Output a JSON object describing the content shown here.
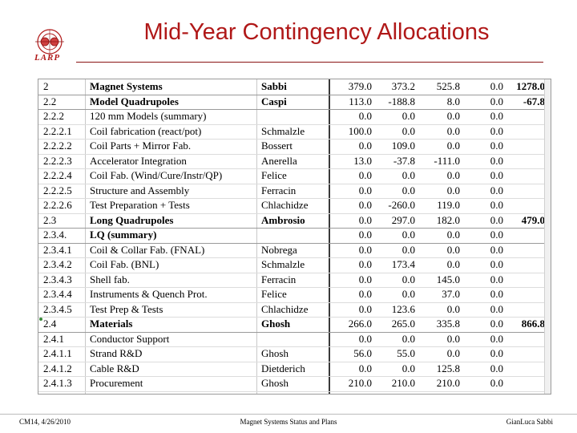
{
  "header": {
    "title": "Mid-Year Contingency Allocations",
    "logo_text": "LARP"
  },
  "table": {
    "rows": [
      {
        "id": "2",
        "name": "Magnet Systems",
        "person": "Sabbi",
        "v1": "379.0",
        "v2": "373.2",
        "v3": "525.8",
        "v4": "0.0",
        "total": "1278.0",
        "bold": true
      },
      {
        "id": "2.2",
        "name": "Model Quadrupoles",
        "person": "Caspi",
        "v1": "113.0",
        "v2": "-188.8",
        "v3": "8.0",
        "v4": "0.0",
        "total": "-67.8",
        "bold": true
      },
      {
        "id": "2.2.2",
        "name": "120 mm Models  (summary)",
        "person": "",
        "v1": "0.0",
        "v2": "0.0",
        "v3": "0.0",
        "v4": "0.0",
        "total": "",
        "bold": false
      },
      {
        "id": "2.2.2.1",
        "name": "Coil fabrication (react/pot)",
        "person": "Schmalzle",
        "v1": "100.0",
        "v2": "0.0",
        "v3": "0.0",
        "v4": "0.0",
        "total": "",
        "bold": false
      },
      {
        "id": "2.2.2.2",
        "name": "Coil Parts + Mirror Fab.",
        "person": "Bossert",
        "v1": "0.0",
        "v2": "109.0",
        "v3": "0.0",
        "v4": "0.0",
        "total": "",
        "bold": false
      },
      {
        "id": "2.2.2.3",
        "name": "Accelerator Integration",
        "person": "Anerella",
        "v1": "13.0",
        "v2": "-37.8",
        "v3": "-111.0",
        "v4": "0.0",
        "total": "",
        "bold": false
      },
      {
        "id": "2.2.2.4",
        "name": "Coil Fab. (Wind/Cure/Instr/QP)",
        "person": "Felice",
        "v1": "0.0",
        "v2": "0.0",
        "v3": "0.0",
        "v4": "0.0",
        "total": "",
        "bold": false
      },
      {
        "id": "2.2.2.5",
        "name": "Structure and Assembly",
        "person": "Ferracin",
        "v1": "0.0",
        "v2": "0.0",
        "v3": "0.0",
        "v4": "0.0",
        "total": "",
        "bold": false
      },
      {
        "id": "2.2.2.6",
        "name": "Test Preparation + Tests",
        "person": "Chlachidze",
        "v1": "0.0",
        "v2": "-260.0",
        "v3": "119.0",
        "v4": "0.0",
        "total": "",
        "bold": false
      },
      {
        "id": "2.3",
        "name": "Long Quadrupoles",
        "person": "Ambrosio",
        "v1": "0.0",
        "v2": "297.0",
        "v3": "182.0",
        "v4": "0.0",
        "total": "479.0",
        "bold": true
      },
      {
        "id": "2.3.4.",
        "name": "LQ (summary)",
        "person": "",
        "v1": "0.0",
        "v2": "0.0",
        "v3": "0.0",
        "v4": "0.0",
        "total": "",
        "bold": true
      },
      {
        "id": "2.3.4.1",
        "name": "Coil & Collar Fab. (FNAL)",
        "person": "Nobrega",
        "v1": "0.0",
        "v2": "0.0",
        "v3": "0.0",
        "v4": "0.0",
        "total": "",
        "bold": false
      },
      {
        "id": "2.3.4.2",
        "name": "Coil Fab. (BNL)",
        "person": "Schmalzle",
        "v1": "0.0",
        "v2": "173.4",
        "v3": "0.0",
        "v4": "0.0",
        "total": "",
        "bold": false
      },
      {
        "id": "2.3.4.3",
        "name": "Shell fab.",
        "person": "Ferracin",
        "v1": "0.0",
        "v2": "0.0",
        "v3": "145.0",
        "v4": "0.0",
        "total": "",
        "bold": false
      },
      {
        "id": "2.3.4.4",
        "name": "Instruments & Quench Prot.",
        "person": "Felice",
        "v1": "0.0",
        "v2": "0.0",
        "v3": "37.0",
        "v4": "0.0",
        "total": "",
        "bold": false
      },
      {
        "id": "2.3.4.5",
        "name": "Test Prep & Tests",
        "person": "Chlachidze",
        "v1": "0.0",
        "v2": "123.6",
        "v3": "0.0",
        "v4": "0.0",
        "total": "",
        "bold": false
      },
      {
        "id": "2.4",
        "name": "Materials",
        "person": "Ghosh",
        "v1": "266.0",
        "v2": "265.0",
        "v3": "335.8",
        "v4": "0.0",
        "total": "866.8",
        "bold": true
      },
      {
        "id": "2.4.1",
        "name": "Conductor Support",
        "person": "",
        "v1": "0.0",
        "v2": "0.0",
        "v3": "0.0",
        "v4": "0.0",
        "total": "",
        "bold": false
      },
      {
        "id": "2.4.1.1",
        "name": "Strand R&D",
        "person": "Ghosh",
        "v1": "56.0",
        "v2": "55.0",
        "v3": "0.0",
        "v4": "0.0",
        "total": "",
        "bold": false
      },
      {
        "id": "2.4.1.2",
        "name": "Cable R&D",
        "person": "Dietderich",
        "v1": "0.0",
        "v2": "0.0",
        "v3": "125.8",
        "v4": "0.0",
        "total": "",
        "bold": false
      },
      {
        "id": "2.4.1.3",
        "name": "Procurement",
        "person": "Ghosh",
        "v1": "210.0",
        "v2": "210.0",
        "v3": "210.0",
        "v4": "0.0",
        "total": "",
        "bold": false
      }
    ]
  },
  "footer": {
    "left": "CM14, 4/26/2010",
    "center": "Magnet Systems Status and Plans",
    "right": "GianLuca Sabbi"
  }
}
